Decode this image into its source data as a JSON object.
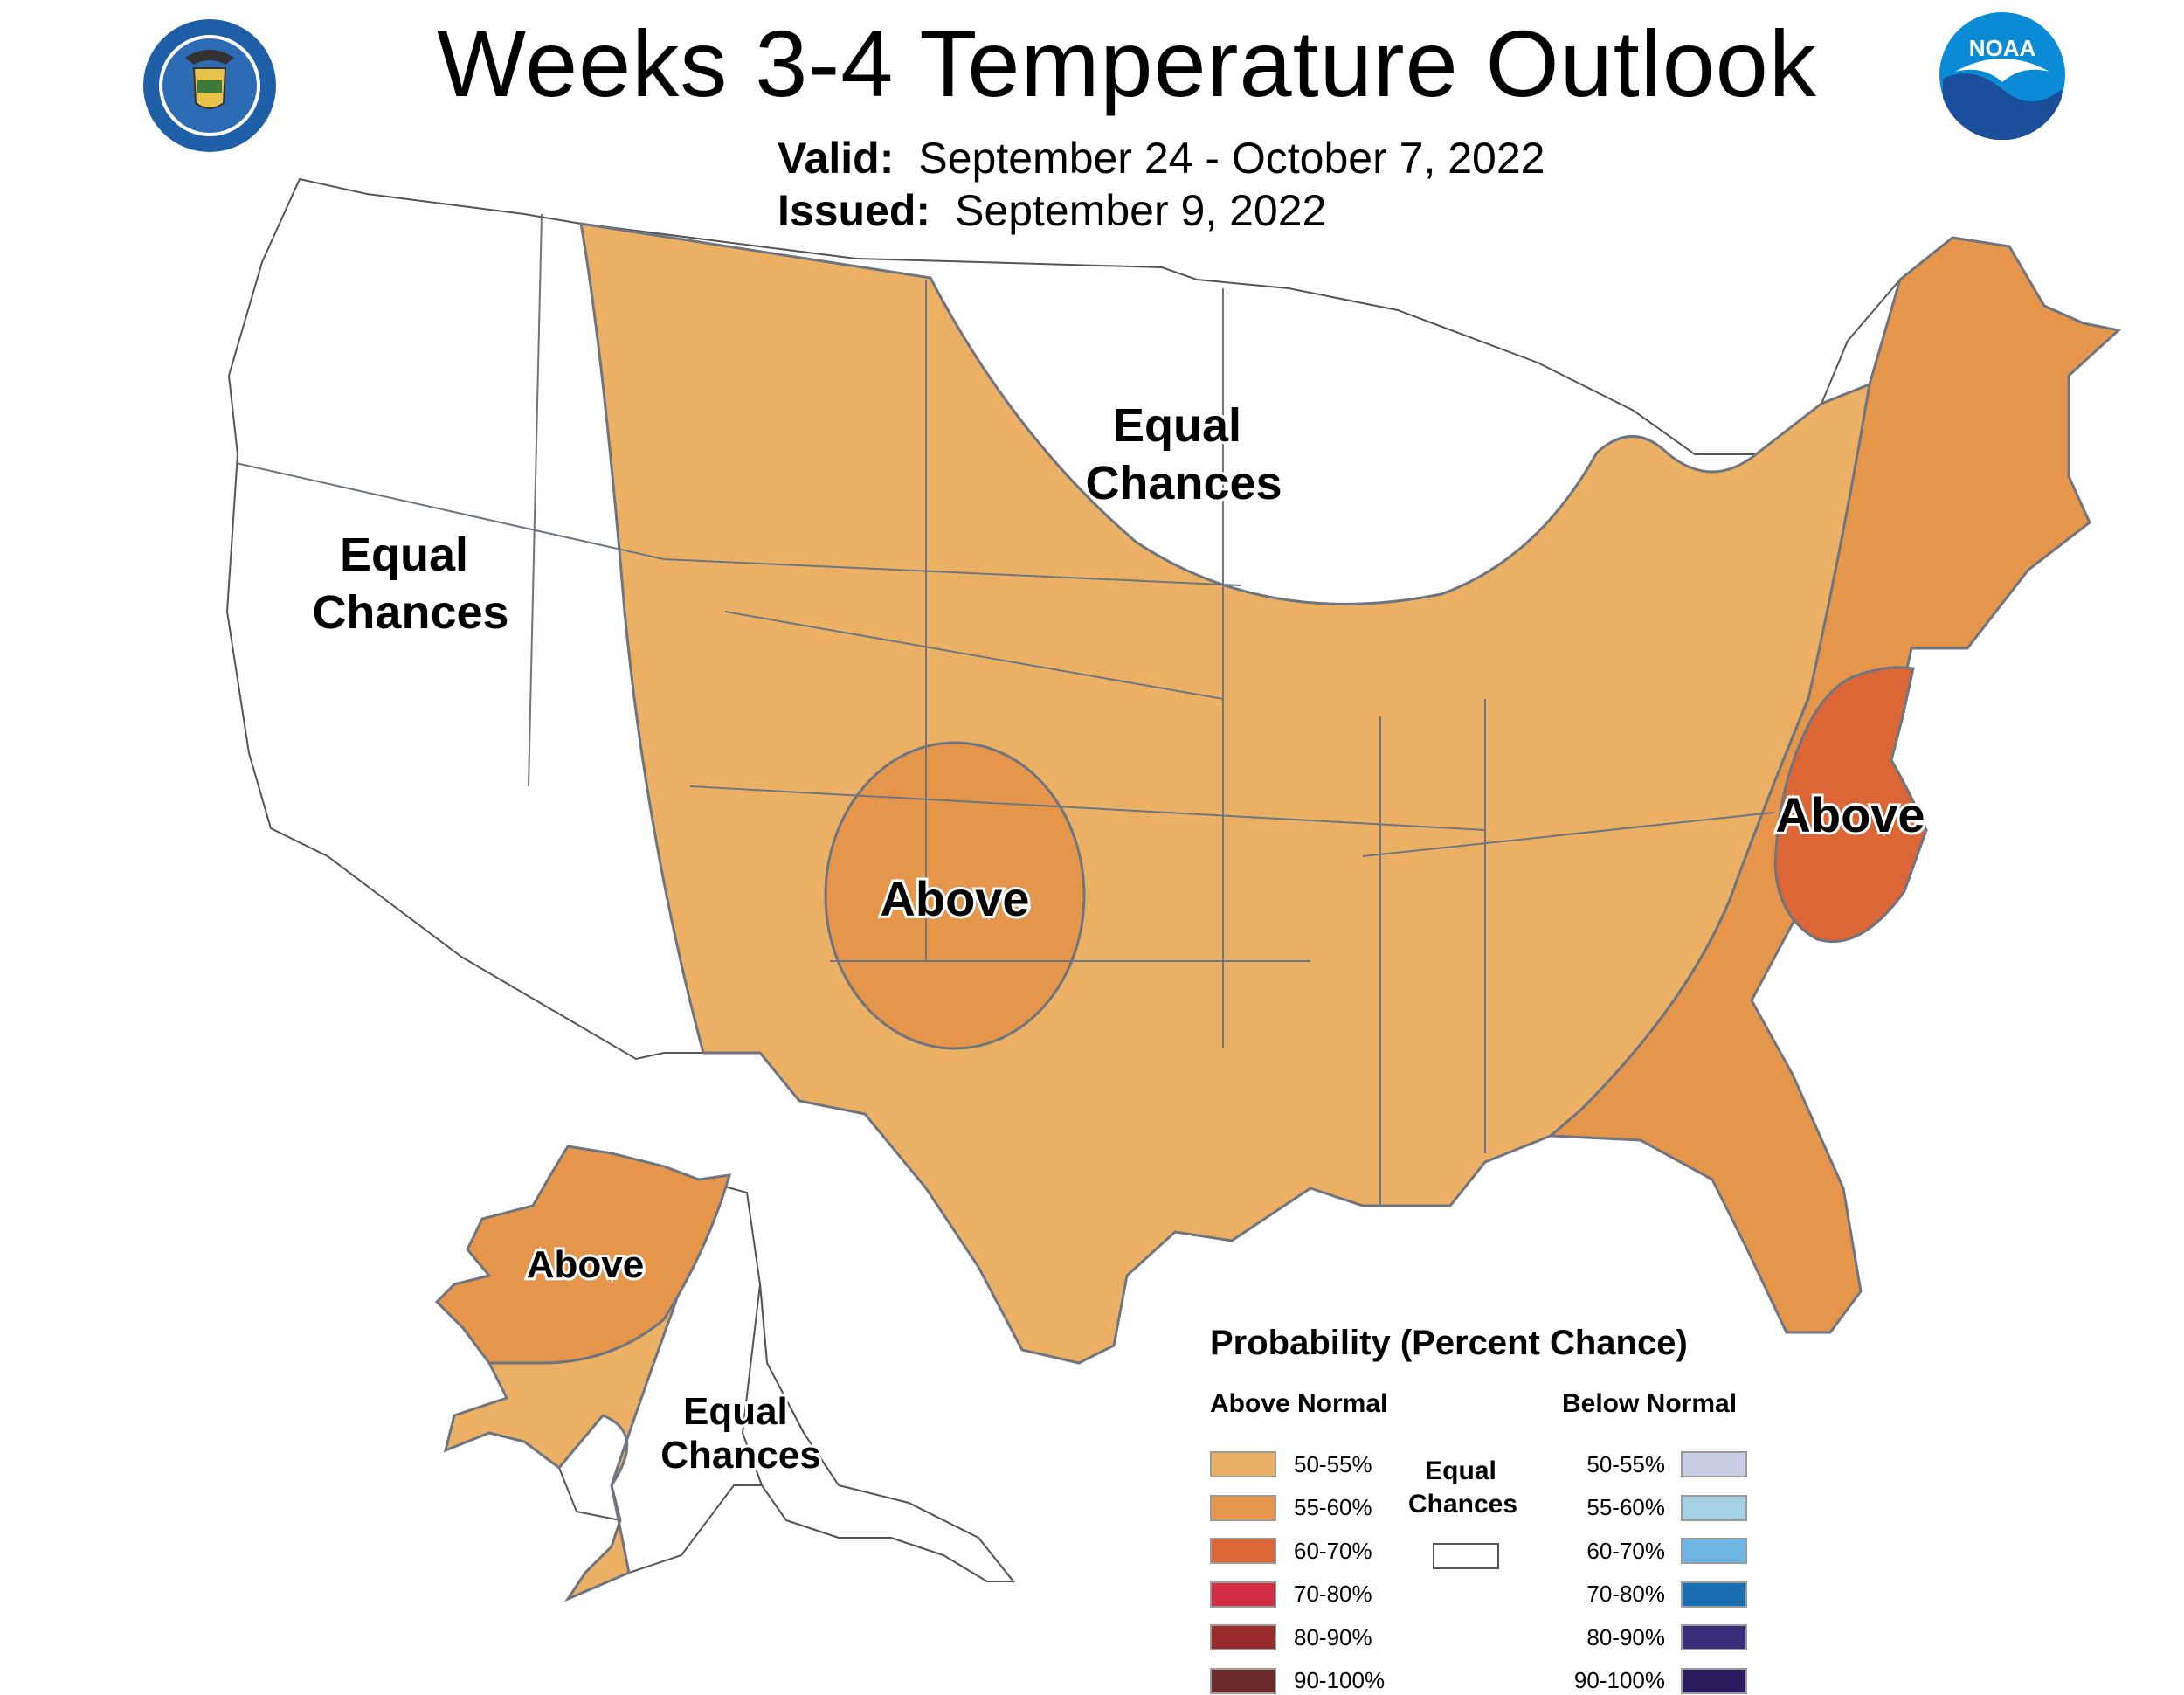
{
  "header": {
    "title": "Weeks 3-4 Temperature Outlook",
    "valid_label": "Valid:",
    "valid_value": "September 24 - October 7, 2022",
    "issued_label": "Issued:",
    "issued_value": "September 9, 2022"
  },
  "logos": {
    "commerce": "department-of-commerce-seal",
    "noaa_text": "NOAA"
  },
  "map_labels": {
    "west_equal": [
      "Equal",
      "Chances"
    ],
    "north_equal": [
      "Equal",
      "Chances"
    ],
    "plains_above": "Above",
    "east_above": "Above",
    "alaska_above": "Above",
    "alaska_equal": [
      "Equal",
      "Chances"
    ]
  },
  "colors": {
    "above_50_55": "#EBB064",
    "above_55_60": "#E6964A",
    "above_60_70": "#DD6636",
    "above_70_80": "#D32D45",
    "above_80_90": "#9A2B2B",
    "above_90_100": "#6A2A2A",
    "below_50_55": "#C9CDE6",
    "below_55_60": "#A4D1E4",
    "below_60_70": "#71B5E4",
    "below_70_80": "#1A6FB0",
    "below_80_90": "#3A2E7A",
    "below_90_100": "#2A1A5E"
  },
  "legend": {
    "title": "Probability (Percent Chance)",
    "above_heading": "Above Normal",
    "below_heading": "Below Normal",
    "equal_label": [
      "Equal",
      "Chances"
    ],
    "above": [
      {
        "label": "50-55%",
        "color": "#EBB064"
      },
      {
        "label": "55-60%",
        "color": "#E6964A"
      },
      {
        "label": "60-70%",
        "color": "#DD6636"
      },
      {
        "label": "70-80%",
        "color": "#D32D45"
      },
      {
        "label": "80-90%",
        "color": "#9A2B2B"
      },
      {
        "label": "90-100%",
        "color": "#6A2A2A"
      }
    ],
    "below": [
      {
        "label": "50-55%",
        "color": "#C9CDE6"
      },
      {
        "label": "55-60%",
        "color": "#A4D1E4"
      },
      {
        "label": "60-70%",
        "color": "#71B5E4"
      },
      {
        "label": "70-80%",
        "color": "#1A6FB0"
      },
      {
        "label": "80-90%",
        "color": "#3A2E7A"
      },
      {
        "label": "90-100%",
        "color": "#2A1A5E"
      }
    ]
  }
}
